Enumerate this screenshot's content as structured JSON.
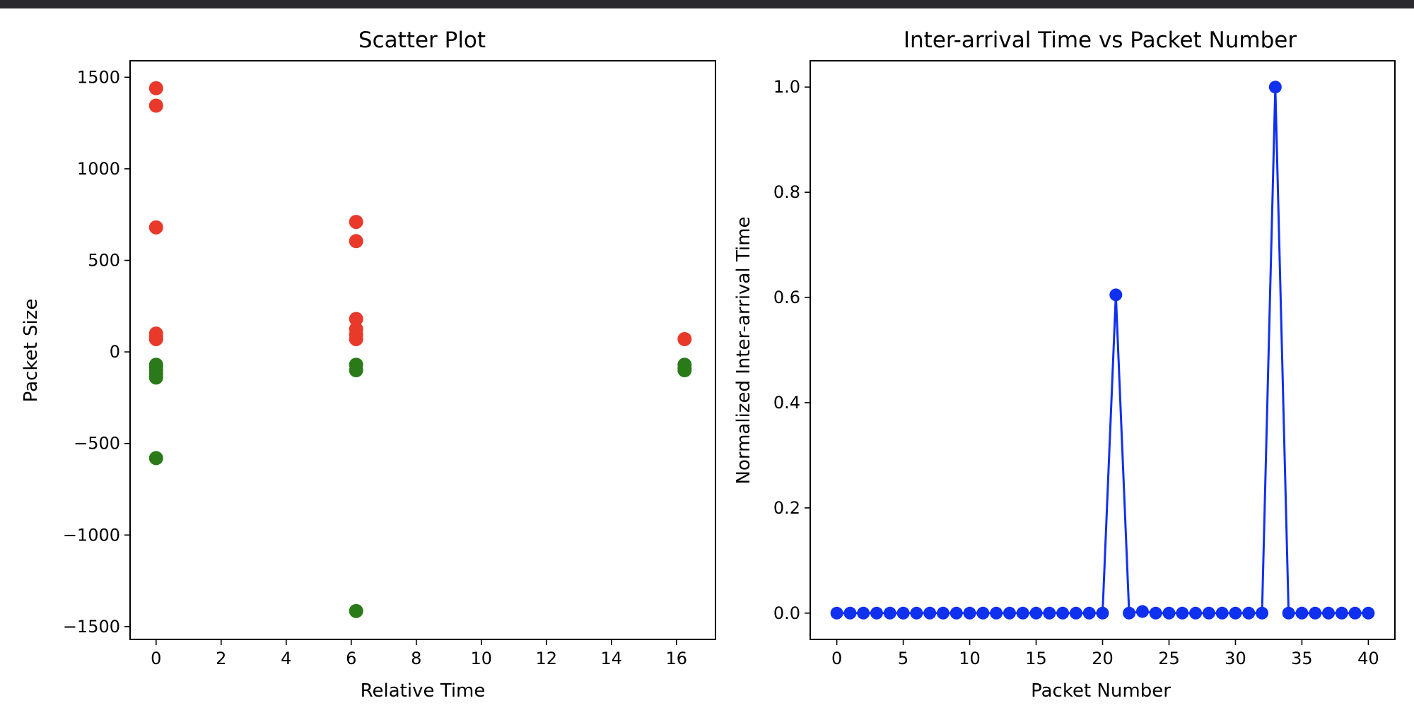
{
  "figure": {
    "background": "#ffffff",
    "frame": "#2b2b2f"
  },
  "chart_data": [
    {
      "type": "scatter",
      "title": "Scatter Plot",
      "xlabel": "Relative Time",
      "ylabel": "Packet Size",
      "xlim": [
        -0.8,
        17.2
      ],
      "ylim": [
        -1570,
        1590
      ],
      "xticks": [
        0,
        2,
        4,
        6,
        8,
        10,
        12,
        14,
        16
      ],
      "yticks": [
        -1500,
        -1000,
        -500,
        0,
        500,
        1000,
        1500
      ],
      "ytick_labels": [
        "−1500",
        "−1000",
        "−500",
        "0",
        "500",
        "1000",
        "1500"
      ],
      "grid": false,
      "series": [
        {
          "color": "#e8392b",
          "points": [
            [
              0,
              1440
            ],
            [
              0,
              1345
            ],
            [
              0,
              680
            ],
            [
              0,
              100
            ],
            [
              0,
              80
            ],
            [
              0,
              70
            ],
            [
              6.15,
              710
            ],
            [
              6.15,
              605
            ],
            [
              6.15,
              180
            ],
            [
              6.15,
              125
            ],
            [
              6.15,
              95
            ],
            [
              6.15,
              70
            ],
            [
              16.25,
              70
            ]
          ]
        },
        {
          "color": "#2a7a1a",
          "points": [
            [
              0,
              -70
            ],
            [
              0,
              -80
            ],
            [
              0,
              -100
            ],
            [
              0,
              -120
            ],
            [
              0,
              -140
            ],
            [
              0,
              -580
            ],
            [
              6.15,
              -70
            ],
            [
              6.15,
              -100
            ],
            [
              6.15,
              -1415
            ],
            [
              16.25,
              -70
            ],
            [
              16.25,
              -90
            ],
            [
              16.25,
              -100
            ]
          ]
        }
      ]
    },
    {
      "type": "line",
      "title": "Inter-arrival Time vs Packet Number",
      "xlabel": "Packet Number",
      "ylabel": "Normalized Inter-arrival Time",
      "xlim": [
        -2,
        42
      ],
      "ylim": [
        -0.05,
        1.05
      ],
      "xticks": [
        0,
        5,
        10,
        15,
        20,
        25,
        30,
        35,
        40
      ],
      "yticks": [
        0.0,
        0.2,
        0.4,
        0.6,
        0.8,
        1.0
      ],
      "ytick_labels": [
        "0.0",
        "0.2",
        "0.4",
        "0.6",
        "0.8",
        "1.0"
      ],
      "grid": false,
      "series": [
        {
          "color": "#1030f0",
          "marker": "circle",
          "x": [
            0,
            1,
            2,
            3,
            4,
            5,
            6,
            7,
            8,
            9,
            10,
            11,
            12,
            13,
            14,
            15,
            16,
            17,
            18,
            19,
            20,
            21,
            22,
            23,
            24,
            25,
            26,
            27,
            28,
            29,
            30,
            31,
            32,
            33,
            34,
            35,
            36,
            37,
            38,
            39,
            40
          ],
          "y": [
            0,
            0,
            0,
            0,
            0,
            0,
            0,
            0,
            0,
            0,
            0,
            0,
            0,
            0,
            0,
            0,
            0,
            0,
            0,
            0,
            0,
            0.605,
            0,
            0.003,
            0,
            0,
            0,
            0,
            0,
            0,
            0,
            0,
            0,
            1.0,
            0,
            0,
            0,
            0,
            0,
            0,
            0
          ]
        }
      ]
    }
  ]
}
